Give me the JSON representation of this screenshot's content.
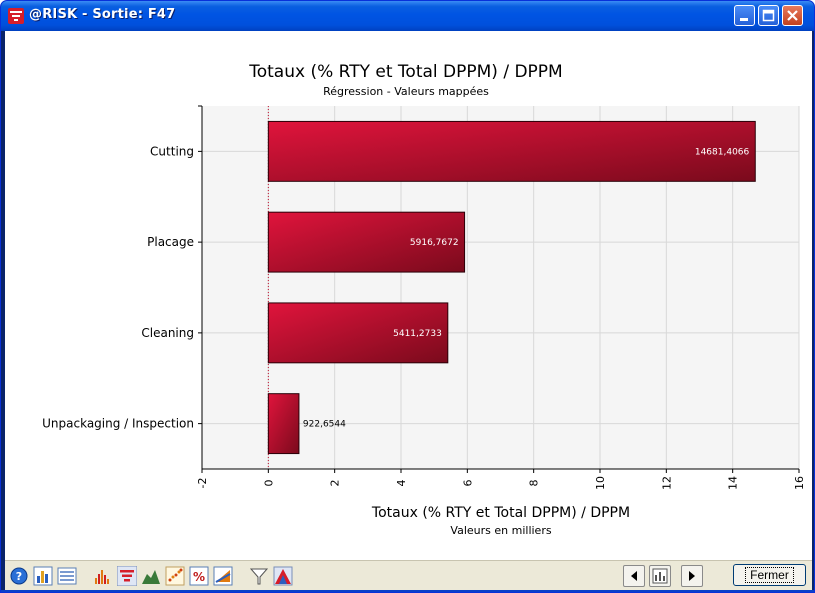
{
  "window": {
    "title": "@RISK - Sortie: F47",
    "close_label": "Fermer"
  },
  "chart_data": {
    "type": "bar",
    "orientation": "horizontal",
    "title": "Totaux (% RTY et Total DPPM) / DPPM",
    "subtitle": "Régression - Valeurs mappées",
    "xlabel": "Totaux (% RTY et Total DPPM) / DPPM",
    "xlabel_sub": "Valeurs en milliers",
    "xlim": [
      -2,
      16
    ],
    "x_ticks": [
      "-2",
      "0",
      "2",
      "4",
      "6",
      "8",
      "10",
      "12",
      "14",
      "16"
    ],
    "categories": [
      "Cutting",
      "Placage",
      "Cleaning",
      "Unpackaging / Inspection"
    ],
    "values": [
      14.6814066,
      5.9167672,
      5.4112733,
      0.9226544
    ],
    "data_labels": [
      "14681,4066",
      "5916,7672",
      "5411,2733",
      "922,6544"
    ],
    "grid": true,
    "bar_color": "#c41230",
    "reference_line_color": "#c41230"
  },
  "toolbar": {
    "icons": [
      "help-icon",
      "histogram-icon",
      "summary-icon",
      "graph-type-icon",
      "tornado-icon",
      "area-icon",
      "scatter-icon",
      "percent-icon",
      "format-icon",
      "filter-icon",
      "overlay-icon"
    ],
    "nav": [
      "prev-icon",
      "chart-icon",
      "next-icon"
    ]
  }
}
